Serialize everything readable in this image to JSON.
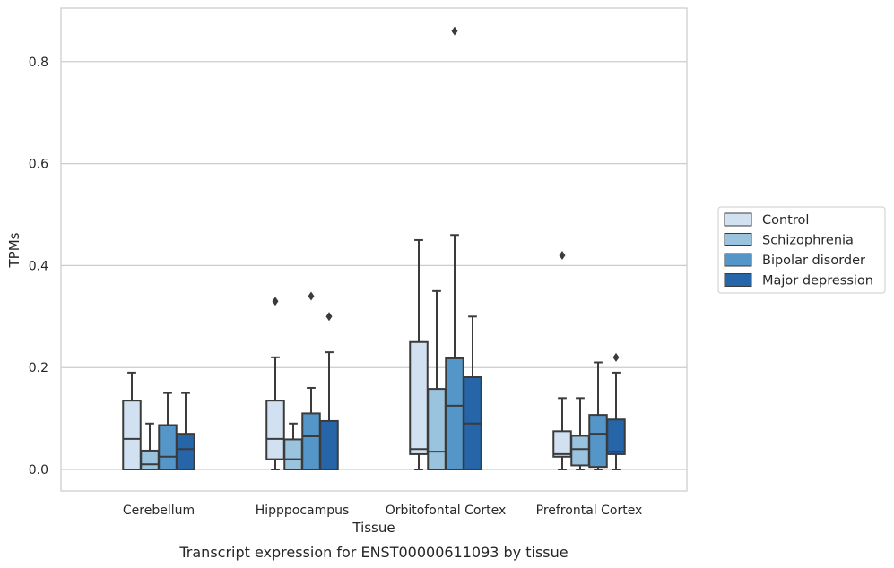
{
  "caption": "Transcript expression for ENST00000611093 by tissue",
  "chart_data": {
    "type": "box",
    "xlabel": "Tissue",
    "ylabel": "TPMs",
    "ylim": [
      -0.042,
      0.905
    ],
    "yticks": [
      0.0,
      0.2,
      0.4,
      0.6,
      0.8
    ],
    "ytick_labels": [
      "0.0",
      "0.2",
      "0.4",
      "0.6",
      "0.8"
    ],
    "grid": "horizontal",
    "legend_position": "right",
    "categories": [
      "Cerebellum",
      "Hipppocampus",
      "Orbitofontal Cortex",
      "Prefrontal Cortex"
    ],
    "series": [
      {
        "name": "Control",
        "color": "#d1e1f1",
        "boxes": [
          {
            "whislo": 0.0,
            "q1": 0.0,
            "med": 0.06,
            "q3": 0.135,
            "whishi": 0.19,
            "fliers": []
          },
          {
            "whislo": 0.0,
            "q1": 0.02,
            "med": 0.06,
            "q3": 0.135,
            "whishi": 0.22,
            "fliers": [
              0.33
            ]
          },
          {
            "whislo": 0.0,
            "q1": 0.03,
            "med": 0.04,
            "q3": 0.25,
            "whishi": 0.45,
            "fliers": []
          },
          {
            "whislo": 0.0,
            "q1": 0.025,
            "med": 0.03,
            "q3": 0.075,
            "whishi": 0.14,
            "fliers": [
              0.42
            ]
          }
        ]
      },
      {
        "name": "Schizophrenia",
        "color": "#9ac3de",
        "boxes": [
          {
            "whislo": 0.0,
            "q1": 0.0,
            "med": 0.01,
            "q3": 0.037,
            "whishi": 0.09,
            "fliers": []
          },
          {
            "whislo": 0.0,
            "q1": 0.0,
            "med": 0.02,
            "q3": 0.059,
            "whishi": 0.09,
            "fliers": []
          },
          {
            "whislo": 0.0,
            "q1": 0.0,
            "med": 0.035,
            "q3": 0.158,
            "whishi": 0.35,
            "fliers": []
          },
          {
            "whislo": 0.0,
            "q1": 0.008,
            "med": 0.04,
            "q3": 0.066,
            "whishi": 0.14,
            "fliers": []
          }
        ]
      },
      {
        "name": "Bipolar disorder",
        "color": "#5596c8",
        "boxes": [
          {
            "whislo": 0.0,
            "q1": 0.0,
            "med": 0.025,
            "q3": 0.087,
            "whishi": 0.15,
            "fliers": []
          },
          {
            "whislo": 0.0,
            "q1": 0.0,
            "med": 0.065,
            "q3": 0.11,
            "whishi": 0.16,
            "fliers": [
              0.34
            ]
          },
          {
            "whislo": 0.0,
            "q1": 0.0,
            "med": 0.125,
            "q3": 0.218,
            "whishi": 0.46,
            "fliers": [
              0.86
            ]
          },
          {
            "whislo": 0.0,
            "q1": 0.005,
            "med": 0.07,
            "q3": 0.107,
            "whishi": 0.21,
            "fliers": []
          }
        ]
      },
      {
        "name": "Major depression",
        "color": "#2565a8",
        "boxes": [
          {
            "whislo": 0.0,
            "q1": 0.0,
            "med": 0.04,
            "q3": 0.07,
            "whishi": 0.15,
            "fliers": []
          },
          {
            "whislo": 0.0,
            "q1": 0.0,
            "med": 0.0,
            "q3": 0.095,
            "whishi": 0.23,
            "fliers": [
              0.3
            ]
          },
          {
            "whislo": 0.0,
            "q1": 0.0,
            "med": 0.09,
            "q3": 0.181,
            "whishi": 0.3,
            "fliers": []
          },
          {
            "whislo": 0.0,
            "q1": 0.03,
            "med": 0.035,
            "q3": 0.098,
            "whishi": 0.19,
            "fliers": [
              0.22
            ]
          }
        ]
      }
    ]
  }
}
